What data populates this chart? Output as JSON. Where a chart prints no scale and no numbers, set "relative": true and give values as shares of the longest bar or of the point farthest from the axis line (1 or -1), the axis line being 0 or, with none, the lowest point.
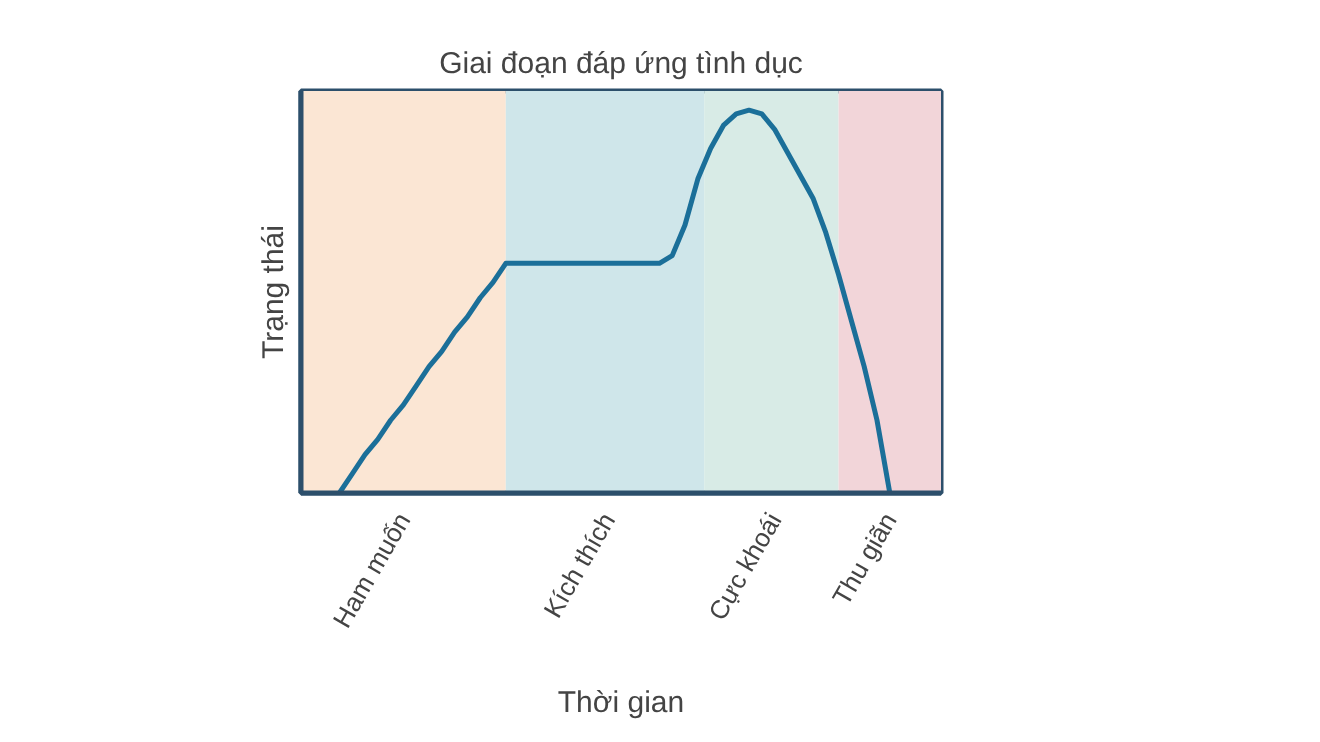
{
  "chart_data": {
    "type": "line",
    "title": "Giai đoạn đáp ứng tình dục",
    "xlabel": "Thời gian",
    "ylabel": "Trạng thái",
    "relative": true,
    "tick_labels": "x",
    "categories": [
      null,
      null,
      null,
      null,
      null,
      null,
      null,
      null,
      "Ham muốn",
      null,
      null,
      null,
      null,
      null,
      null,
      null,
      null,
      null,
      null,
      null,
      null,
      null,
      null,
      null,
      "Kích thích",
      null,
      null,
      null,
      null,
      null,
      null,
      null,
      null,
      null,
      null,
      null,
      null,
      "Cực khoái",
      null,
      null,
      null,
      null,
      null,
      null,
      null,
      null,
      "Thu giãn",
      null,
      null,
      null,
      null
    ],
    "series": [
      {
        "color": "#1b6f99",
        "values": [
          null,
          null,
          null,
          0,
          0.05,
          0.1,
          0.14,
          0.19,
          0.23,
          0.28,
          0.33,
          0.37,
          0.42,
          0.46,
          0.51,
          0.55,
          0.6,
          0.6,
          0.6,
          0.6,
          0.6,
          0.6,
          0.6,
          0.6,
          0.6,
          0.6,
          0.6,
          0.6,
          0.6,
          0.62,
          0.7,
          0.82,
          0.9,
          0.96,
          0.99,
          1,
          0.99,
          0.95,
          0.89,
          0.83,
          0.77,
          0.68,
          0.57,
          0.45,
          0.33,
          0.19,
          0,
          null,
          null,
          null,
          null
        ]
      }
    ]
  }
}
